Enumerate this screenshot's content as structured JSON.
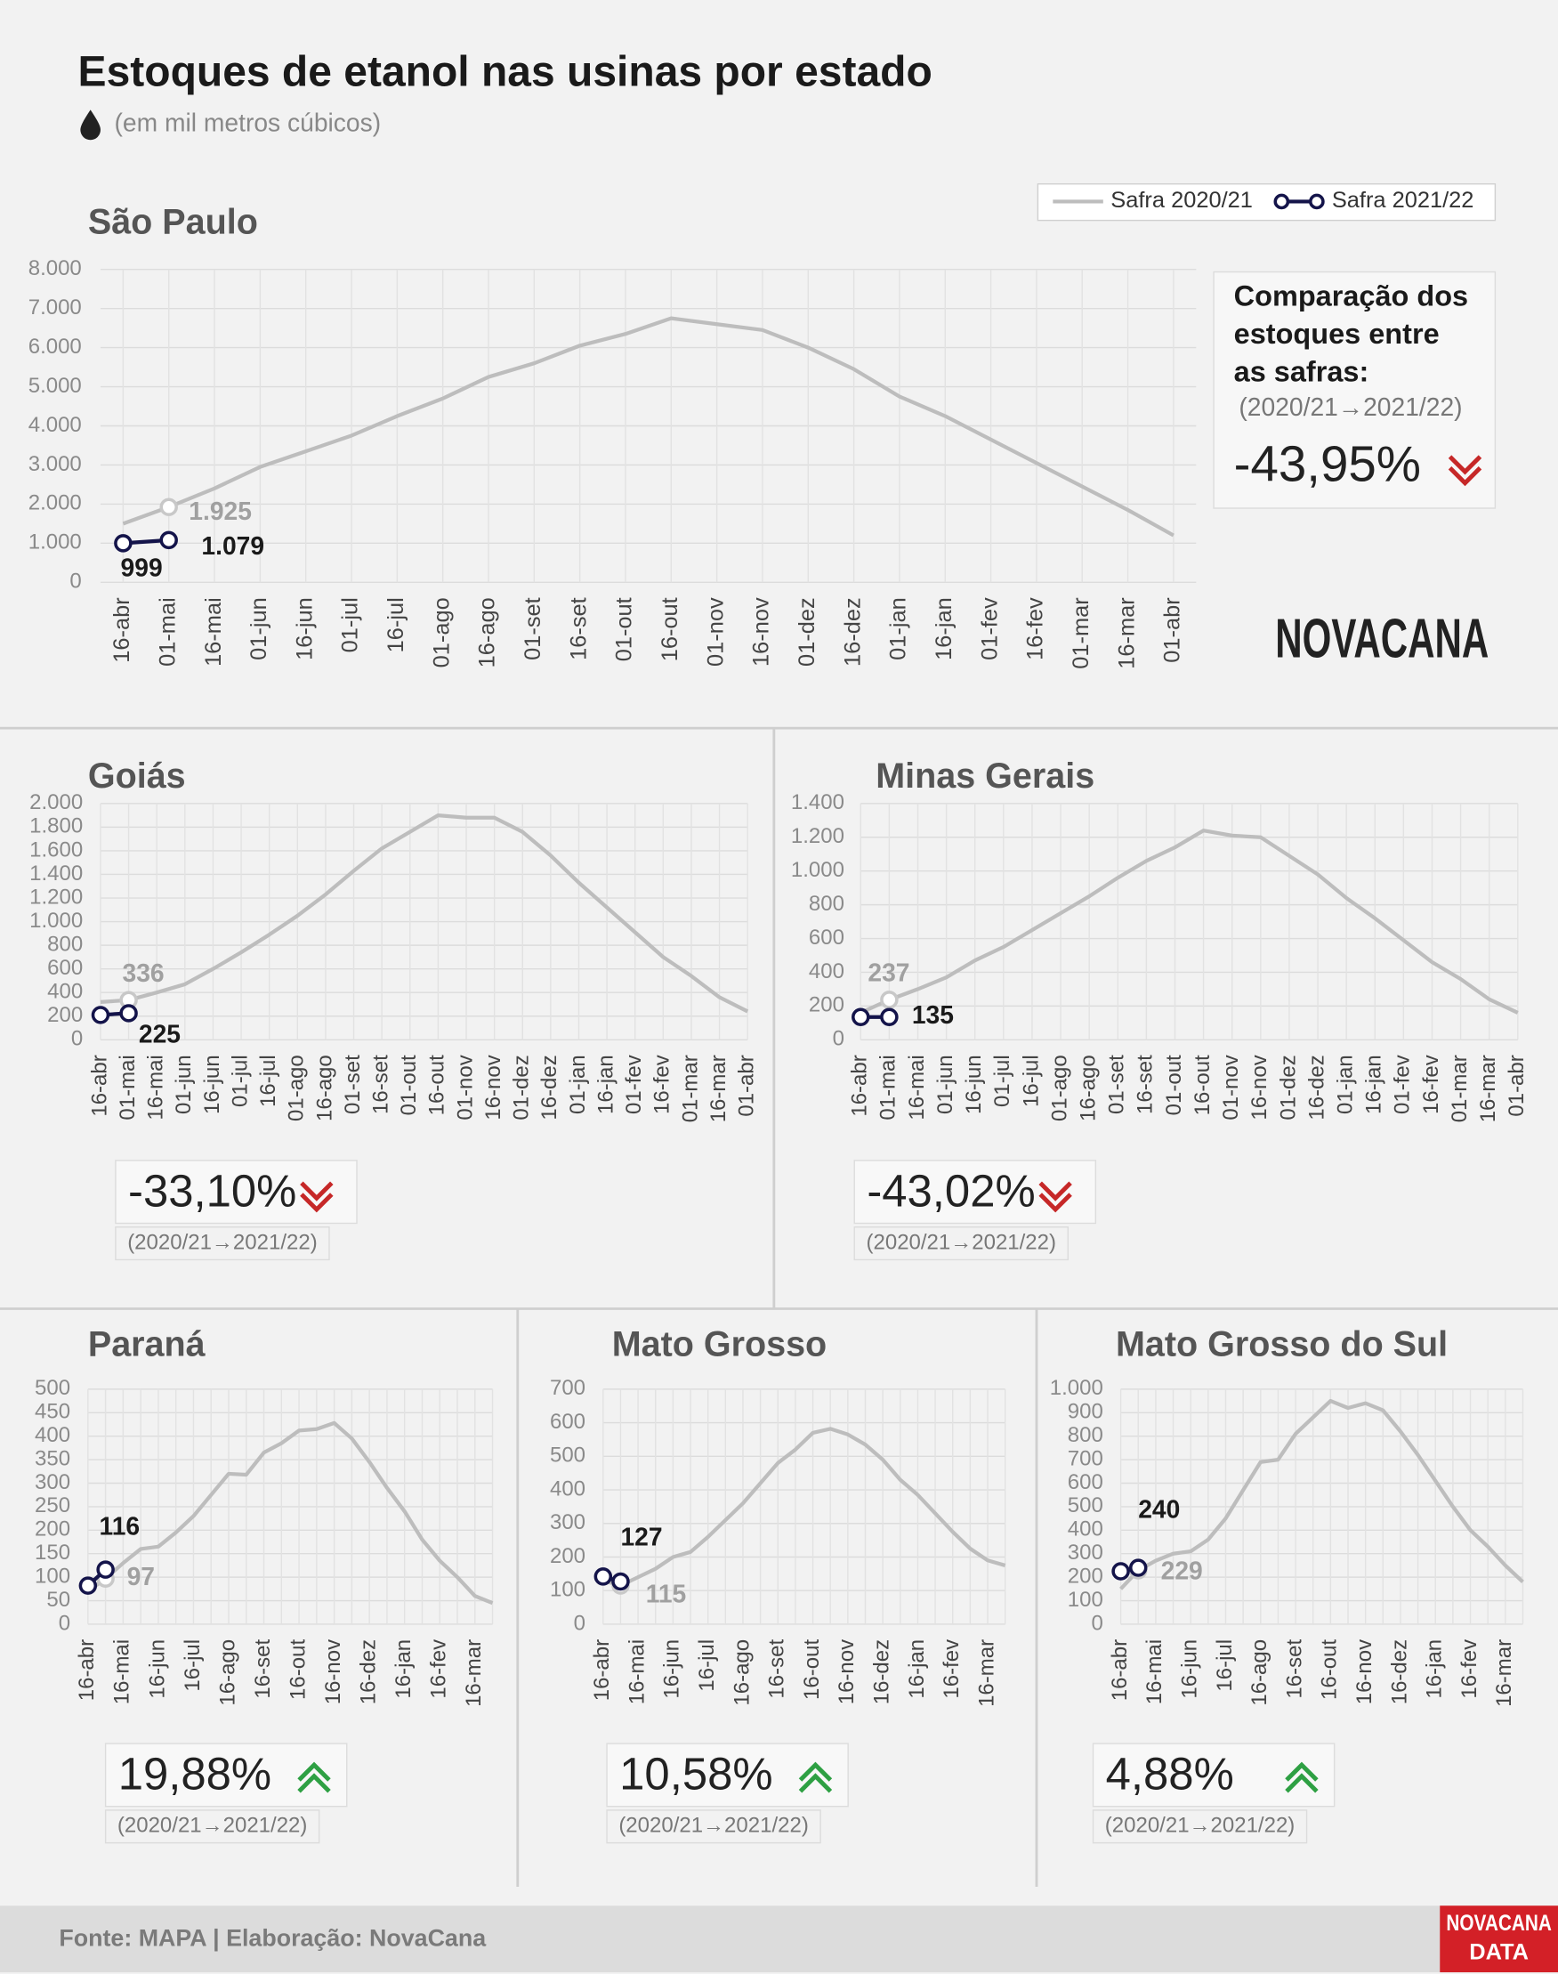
{
  "title": "Estoques de etanol nas usinas por estado",
  "subtitle": "(em mil metros cúbicos)",
  "source": "Fonte: MAPA  | Elaboração: NovaCana",
  "logo": "NOVACANA",
  "logo_data": [
    "NOVACANA",
    "DATA"
  ],
  "legend": [
    {
      "name": "Safra 2020/21",
      "color": "#bdbdbd"
    },
    {
      "name": "Safra 2021/22",
      "color": "#14144a"
    }
  ],
  "comparison_heading": [
    "Comparação dos",
    "estoques entre",
    "as safras:"
  ],
  "chart_data": [
    {
      "type": "line",
      "title": "São Paulo",
      "categories": [
        "16-abr",
        "01-mai",
        "16-mai",
        "01-jun",
        "16-jun",
        "01-jul",
        "16-jul",
        "01-ago",
        "16-ago",
        "01-set",
        "16-set",
        "01-out",
        "16-out",
        "01-nov",
        "16-nov",
        "01-dez",
        "16-dez",
        "01-jan",
        "16-jan",
        "01-fev",
        "16-fev",
        "01-mar",
        "16-mar",
        "01-abr"
      ],
      "series": [
        {
          "color": "#bdbdbd",
          "markers": false,
          "values": [
            1500,
            1925,
            2400,
            2950,
            3350,
            3750,
            4250,
            4700,
            5250,
            5600,
            6050,
            6350,
            6750,
            6600,
            6450,
            6000,
            5450,
            4750,
            4250,
            3650,
            3050,
            2450,
            1850,
            1200
          ],
          "value_labels": [
            null,
            "1.925",
            null,
            null,
            null,
            null,
            null,
            null,
            null,
            null,
            null,
            null,
            null,
            null,
            null,
            null,
            null,
            null,
            null,
            null,
            null,
            null,
            null,
            null
          ]
        },
        {
          "color": "#14144a",
          "markers": true,
          "values": [
            999,
            1079,
            null,
            null,
            null,
            null,
            null,
            null,
            null,
            null,
            null,
            null,
            null,
            null,
            null,
            null,
            null,
            null,
            null,
            null,
            null,
            null,
            null,
            null
          ],
          "value_labels": [
            "999",
            "1.079",
            null,
            null,
            null,
            null,
            null,
            null,
            null,
            null,
            null,
            null,
            null,
            null,
            null,
            null,
            null,
            null,
            null,
            null,
            null,
            null,
            null,
            null
          ]
        }
      ],
      "ylim": [
        0,
        8000
      ],
      "yticks": [
        0,
        {
          "value": 1000,
          "label": "1.000"
        },
        {
          "value": 2000,
          "label": "2.000"
        },
        {
          "value": 3000,
          "label": "3.000"
        },
        {
          "value": 4000,
          "label": "4.000"
        },
        {
          "value": 5000,
          "label": "5.000"
        },
        {
          "value": 6000,
          "label": "6.000"
        },
        {
          "value": 7000,
          "label": "7.000"
        },
        {
          "value": 8000,
          "label": "8.000"
        }
      ],
      "grid": true,
      "change": "-43,95%",
      "period": "(2020/21→2021/22)",
      "trend": "down"
    },
    {
      "type": "line",
      "title": "Goiás",
      "categories": [
        "16-abr",
        "01-mai",
        "16-mai",
        "01-jun",
        "16-jun",
        "01-jul",
        "16-jul",
        "01-ago",
        "16-ago",
        "01-set",
        "16-set",
        "01-out",
        "16-out",
        "01-nov",
        "16-nov",
        "01-dez",
        "16-dez",
        "01-jan",
        "16-jan",
        "01-fev",
        "16-fev",
        "01-mar",
        "16-mar",
        "01-abr"
      ],
      "series": [
        {
          "color": "#bdbdbd",
          "markers": false,
          "values": [
            320,
            336,
            400,
            470,
            600,
            740,
            890,
            1050,
            1230,
            1430,
            1620,
            1760,
            1900,
            1880,
            1880,
            1760,
            1560,
            1330,
            1120,
            910,
            700,
            540,
            360,
            240
          ],
          "value_labels": [
            null,
            "336",
            null,
            null,
            null,
            null,
            null,
            null,
            null,
            null,
            null,
            null,
            null,
            null,
            null,
            null,
            null,
            null,
            null,
            null,
            null,
            null,
            null,
            null
          ]
        },
        {
          "color": "#14144a",
          "markers": true,
          "values": [
            210,
            225,
            null,
            null,
            null,
            null,
            null,
            null,
            null,
            null,
            null,
            null,
            null,
            null,
            null,
            null,
            null,
            null,
            null,
            null,
            null,
            null,
            null,
            null
          ],
          "value_labels": [
            null,
            "225",
            null,
            null,
            null,
            null,
            null,
            null,
            null,
            null,
            null,
            null,
            null,
            null,
            null,
            null,
            null,
            null,
            null,
            null,
            null,
            null,
            null,
            null
          ]
        }
      ],
      "ylim": [
        0,
        2000
      ],
      "yticks": [
        0,
        200,
        400,
        600,
        800,
        {
          "value": 1000,
          "label": "1.000"
        },
        {
          "value": 1200,
          "label": "1.200"
        },
        {
          "value": 1400,
          "label": "1.400"
        },
        {
          "value": 1600,
          "label": "1.600"
        },
        {
          "value": 1800,
          "label": "1.800"
        },
        {
          "value": 2000,
          "label": "2.000"
        }
      ],
      "grid": true,
      "change": "-33,10%",
      "period": "(2020/21→2021/22)",
      "trend": "down"
    },
    {
      "type": "line",
      "title": "Minas Gerais",
      "categories": [
        "16-abr",
        "01-mai",
        "16-mai",
        "01-jun",
        "16-jun",
        "01-jul",
        "16-jul",
        "01-ago",
        "16-ago",
        "01-set",
        "16-set",
        "01-out",
        "16-out",
        "01-nov",
        "16-nov",
        "01-dez",
        "16-dez",
        "01-jan",
        "16-jan",
        "01-fev",
        "16-fev",
        "01-mar",
        "16-mar",
        "01-abr"
      ],
      "series": [
        {
          "color": "#bdbdbd",
          "markers": false,
          "values": [
            160,
            237,
            300,
            370,
            470,
            550,
            650,
            750,
            850,
            960,
            1060,
            1140,
            1240,
            1210,
            1200,
            1090,
            980,
            840,
            720,
            590,
            460,
            360,
            240,
            160
          ],
          "value_labels": [
            null,
            "237",
            null,
            null,
            null,
            null,
            null,
            null,
            null,
            null,
            null,
            null,
            null,
            null,
            null,
            null,
            null,
            null,
            null,
            null,
            null,
            null,
            null,
            null
          ]
        },
        {
          "color": "#14144a",
          "markers": true,
          "values": [
            135,
            135,
            null,
            null,
            null,
            null,
            null,
            null,
            null,
            null,
            null,
            null,
            null,
            null,
            null,
            null,
            null,
            null,
            null,
            null,
            null,
            null,
            null,
            null
          ],
          "value_labels": [
            null,
            "135",
            null,
            null,
            null,
            null,
            null,
            null,
            null,
            null,
            null,
            null,
            null,
            null,
            null,
            null,
            null,
            null,
            null,
            null,
            null,
            null,
            null,
            null
          ]
        }
      ],
      "ylim": [
        0,
        1400
      ],
      "yticks": [
        0,
        200,
        400,
        600,
        800,
        {
          "value": 1000,
          "label": "1.000"
        },
        {
          "value": 1200,
          "label": "1.200"
        },
        {
          "value": 1400,
          "label": "1.400"
        }
      ],
      "grid": true,
      "change": "-43,02%",
      "period": "(2020/21→2021/22)",
      "trend": "down"
    },
    {
      "type": "line",
      "title": "Paraná",
      "categories": [
        "16-abr",
        null,
        "16-mai",
        null,
        "16-jun",
        null,
        "16-jul",
        null,
        "16-ago",
        null,
        "16-set",
        null,
        "16-out",
        null,
        "16-nov",
        null,
        "16-dez",
        null,
        "16-jan",
        null,
        "16-fev",
        null,
        "16-mar",
        null
      ],
      "series": [
        {
          "color": "#bdbdbd",
          "markers": false,
          "values": [
            70,
            97,
            130,
            160,
            165,
            195,
            230,
            275,
            320,
            318,
            365,
            385,
            412,
            415,
            428,
            395,
            345,
            290,
            240,
            180,
            135,
            100,
            60,
            45
          ],
          "value_labels": [
            null,
            "97",
            null,
            null,
            null,
            null,
            null,
            null,
            null,
            null,
            null,
            null,
            null,
            null,
            null,
            null,
            null,
            null,
            null,
            null,
            null,
            null,
            null,
            null
          ]
        },
        {
          "color": "#14144a",
          "markers": true,
          "values": [
            82,
            116,
            null,
            null,
            null,
            null,
            null,
            null,
            null,
            null,
            null,
            null,
            null,
            null,
            null,
            null,
            null,
            null,
            null,
            null,
            null,
            null,
            null,
            null
          ],
          "value_labels": [
            null,
            "116",
            null,
            null,
            null,
            null,
            null,
            null,
            null,
            null,
            null,
            null,
            null,
            null,
            null,
            null,
            null,
            null,
            null,
            null,
            null,
            null,
            null,
            null
          ]
        }
      ],
      "ylim": [
        0,
        500
      ],
      "yticks": [
        0,
        50,
        100,
        150,
        200,
        250,
        300,
        350,
        400,
        450,
        500
      ],
      "grid": true,
      "change": "19,88%",
      "period": "(2020/21→2021/22)",
      "trend": "up"
    },
    {
      "type": "line",
      "title": "Mato Grosso",
      "categories": [
        "16-abr",
        null,
        "16-mai",
        null,
        "16-jun",
        null,
        "16-jul",
        null,
        "16-ago",
        null,
        "16-set",
        null,
        "16-out",
        null,
        "16-nov",
        null,
        "16-dez",
        null,
        "16-jan",
        null,
        "16-fev",
        null,
        "16-mar",
        null
      ],
      "series": [
        {
          "color": "#bdbdbd",
          "markers": false,
          "values": [
            130,
            115,
            140,
            165,
            200,
            215,
            260,
            310,
            360,
            420,
            480,
            520,
            570,
            582,
            565,
            535,
            490,
            430,
            385,
            330,
            275,
            225,
            190,
            175
          ],
          "value_labels": [
            null,
            "115",
            null,
            null,
            null,
            null,
            null,
            null,
            null,
            null,
            null,
            null,
            null,
            null,
            null,
            null,
            null,
            null,
            null,
            null,
            null,
            null,
            null,
            null
          ]
        },
        {
          "color": "#14144a",
          "markers": true,
          "values": [
            142,
            127,
            null,
            null,
            null,
            null,
            null,
            null,
            null,
            null,
            null,
            null,
            null,
            null,
            null,
            null,
            null,
            null,
            null,
            null,
            null,
            null,
            null,
            null
          ],
          "value_labels": [
            null,
            "127",
            null,
            null,
            null,
            null,
            null,
            null,
            null,
            null,
            null,
            null,
            null,
            null,
            null,
            null,
            null,
            null,
            null,
            null,
            null,
            null,
            null,
            null
          ]
        }
      ],
      "ylim": [
        0,
        700
      ],
      "yticks": [
        0,
        100,
        200,
        300,
        400,
        500,
        600,
        700
      ],
      "grid": true,
      "change": "10,58%",
      "period": "(2020/21→2021/22)",
      "trend": "up"
    },
    {
      "type": "line",
      "title": "Mato Grosso do Sul",
      "categories": [
        "16-abr",
        null,
        "16-mai",
        null,
        "16-jun",
        null,
        "16-jul",
        null,
        "16-ago",
        null,
        "16-set",
        null,
        "16-out",
        null,
        "16-nov",
        null,
        "16-dez",
        null,
        "16-jan",
        null,
        "16-fev",
        null,
        "16-mar",
        null
      ],
      "series": [
        {
          "color": "#bdbdbd",
          "markers": false,
          "values": [
            150,
            229,
            270,
            300,
            310,
            360,
            450,
            570,
            690,
            700,
            810,
            880,
            950,
            920,
            940,
            910,
            820,
            720,
            610,
            500,
            400,
            330,
            250,
            180
          ],
          "value_labels": [
            null,
            "229",
            null,
            null,
            null,
            null,
            null,
            null,
            null,
            null,
            null,
            null,
            null,
            null,
            null,
            null,
            null,
            null,
            null,
            null,
            null,
            null,
            null,
            null
          ]
        },
        {
          "color": "#14144a",
          "markers": true,
          "values": [
            225,
            240,
            null,
            null,
            null,
            null,
            null,
            null,
            null,
            null,
            null,
            null,
            null,
            null,
            null,
            null,
            null,
            null,
            null,
            null,
            null,
            null,
            null,
            null
          ],
          "value_labels": [
            null,
            "240",
            null,
            null,
            null,
            null,
            null,
            null,
            null,
            null,
            null,
            null,
            null,
            null,
            null,
            null,
            null,
            null,
            null,
            null,
            null,
            null,
            null,
            null
          ]
        }
      ],
      "ylim": [
        0,
        1000
      ],
      "yticks": [
        0,
        100,
        200,
        300,
        400,
        500,
        600,
        700,
        800,
        900,
        {
          "value": 1000,
          "label": "1.000"
        }
      ],
      "grid": true,
      "change": "4,88%",
      "period": "(2020/21→2021/22)",
      "trend": "up"
    }
  ]
}
